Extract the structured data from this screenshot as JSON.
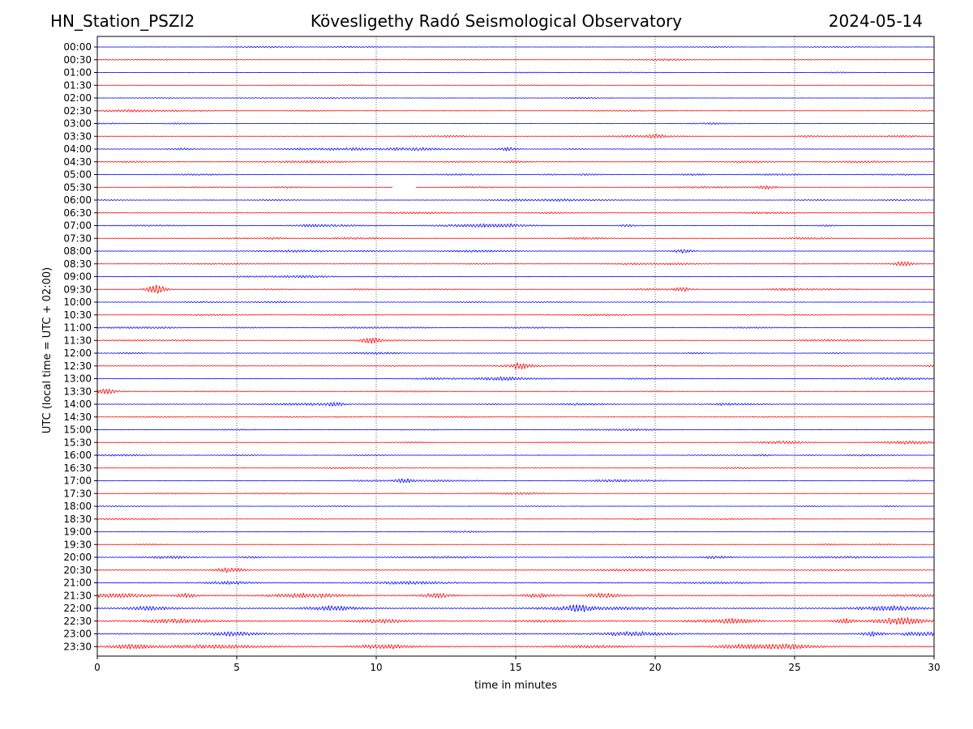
{
  "header": {
    "station": "HN_Station_PSZI2",
    "title": "Kövesligethy Radó Seismological Observatory",
    "date": "2024-05-14"
  },
  "chart_data": {
    "type": "line",
    "title": "Kövesligethy Radó Seismological Observatory",
    "xlabel": "time in minutes",
    "ylabel": "UTC (local time = UTC + 02:00)",
    "xlim": [
      0,
      30
    ],
    "x_ticks": [
      0,
      5,
      10,
      15,
      20,
      25,
      30
    ],
    "grid": "vertical dotted at x ticks",
    "trace_colors": [
      "#0000ff",
      "#ff0000"
    ],
    "trace_labels": [
      "00:00",
      "00:30",
      "01:00",
      "01:30",
      "02:00",
      "02:30",
      "03:00",
      "03:30",
      "04:00",
      "04:30",
      "05:00",
      "05:30",
      "06:00",
      "06:30",
      "07:00",
      "07:30",
      "08:00",
      "08:30",
      "09:00",
      "09:30",
      "10:00",
      "10:30",
      "11:00",
      "11:30",
      "12:00",
      "12:30",
      "13:00",
      "13:30",
      "14:00",
      "14:30",
      "15:00",
      "15:30",
      "16:00",
      "16:30",
      "17:00",
      "17:30",
      "18:00",
      "18:30",
      "19:00",
      "19:30",
      "20:00",
      "20:30",
      "21:00",
      "21:30",
      "22:00",
      "22:30",
      "23:00",
      "23:30"
    ],
    "trace_activity": [
      0.3,
      0.3,
      0.3,
      0.3,
      0.3,
      0.4,
      0.4,
      0.5,
      0.6,
      0.6,
      0.5,
      0.5,
      0.5,
      0.6,
      0.7,
      0.7,
      0.6,
      0.5,
      0.5,
      0.6,
      0.5,
      0.3,
      0.5,
      0.6,
      0.6,
      0.6,
      0.6,
      0.5,
      0.6,
      0.4,
      0.4,
      0.5,
      0.5,
      0.4,
      0.5,
      0.4,
      0.4,
      0.4,
      0.5,
      0.5,
      0.8,
      0.9,
      1.1,
      1.2,
      1.3,
      1.3,
      1.4,
      1.3
    ],
    "events": [
      {
        "trace": "03:30",
        "x": 20,
        "amp": 1.2
      },
      {
        "trace": "04:00",
        "x": 14.7,
        "amp": 1.5
      },
      {
        "trace": "05:30",
        "x": 24,
        "amp": 1.3
      },
      {
        "trace": "08:00",
        "x": 21,
        "amp": 1.6
      },
      {
        "trace": "08:30",
        "x": 28.9,
        "amp": 2.0
      },
      {
        "trace": "09:30",
        "x": 2.1,
        "amp": 4.0
      },
      {
        "trace": "09:30",
        "x": 21,
        "amp": 1.6
      },
      {
        "trace": "11:30",
        "x": 9.8,
        "amp": 2.2
      },
      {
        "trace": "12:30",
        "x": 15.2,
        "amp": 1.5
      },
      {
        "trace": "13:30",
        "x": 0.3,
        "amp": 1.8
      },
      {
        "trace": "14:00",
        "x": 8.5,
        "amp": 1.4
      },
      {
        "trace": "17:00",
        "x": 11,
        "amp": 1.8
      },
      {
        "trace": "21:30",
        "x": 3.2,
        "amp": 1.6
      },
      {
        "trace": "22:00",
        "x": 17.3,
        "amp": 2.2
      },
      {
        "trace": "22:30",
        "x": 26.8,
        "amp": 2.0
      }
    ],
    "gaps": [
      {
        "trace": "05:30",
        "x_start": 10.6,
        "x_end": 11.4
      }
    ]
  }
}
